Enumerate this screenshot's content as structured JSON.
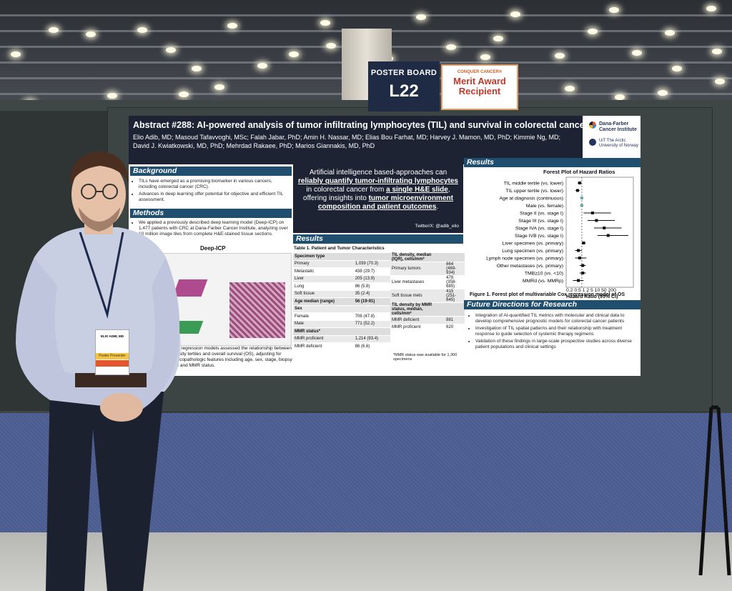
{
  "sign": {
    "board_label": "POSTER BOARD",
    "board_number": "L22",
    "award_org": "CONQUER CANCER®",
    "award_text": "Merit Award Recipient"
  },
  "poster": {
    "title": "Abstract #288: AI-powered analysis of tumor infiltrating lymphocytes (TIL) and survival in colorectal cancer",
    "authors": "Elio Adib, MD; Masoud Tafavvoghi, MSc; Falah Jabar, PhD; Amin H. Nassar, MD; Elias Bou Farhat, MD; Harvey J. Mamon, MD, PhD; Kimmie Ng, MD; David J. Kwiatkowski, MD, PhD; Mehrdad Rakaee, PhD; Marios Giannakis, MD, PhD",
    "logo1": "Dana-Farber Cancer Institute",
    "logo2": "UiT The Arctic University of Norway",
    "background_head": "Background",
    "background_bullets": [
      "TILs have emerged as a promising biomarker in various cancers, including colorectal cancer (CRC).",
      "Advances in deep learning offer potential for objective and efficient TIL assessment."
    ],
    "methods_head": "Methods",
    "methods_bullets": [
      "We applied a previously described deep learning model (Deep-ICP) on 1,477 patients with CRC at Dana-Farber Cancer Institute, analyzing over 10 million image tiles from complete H&E-stained tissue sections."
    ],
    "methods_fig_title": "Deep-ICP",
    "methods_tail": "Cox regression models assessed the relationship between density tertiles and overall survival (OS), adjusting for clinicopathologic features including age, sex, stage, biopsy site and MMR status.",
    "key_message": {
      "p1": "Artificial intelligence based-approaches can",
      "p2": "reliably quantify tumor-infiltrating lymphocytes",
      "p3": "in colorectal cancer from",
      "p4": "a single H&E slide",
      "p5": ", offering insights into",
      "p6": "tumor microenvironment composition and patient outcomes",
      "p7": ".",
      "twitter": "Twitter/X: @adib_elio"
    },
    "results_head": "Results",
    "table_title": "Table 1. Patient and Tumor Characteristics",
    "table_left": [
      {
        "label": "Specimen type",
        "value": "",
        "section": true
      },
      {
        "label": "Primary",
        "value": "1,039 (70.3)"
      },
      {
        "label": "Metastatic",
        "value": "438 (29.7)"
      },
      {
        "label": "Liver",
        "value": "205 (13.9)"
      },
      {
        "label": "Lung",
        "value": "86 (5.8)"
      },
      {
        "label": "Soft tissue",
        "value": "35 (2.4)"
      },
      {
        "label": "Age median (range)",
        "value": "56 (19-91)",
        "section": true
      },
      {
        "label": "Sex",
        "value": "",
        "section": true
      },
      {
        "label": "Female",
        "value": "706 (47.8)"
      },
      {
        "label": "Male",
        "value": "771 (52.2)"
      },
      {
        "label": "MMR status*",
        "value": "",
        "section": true
      },
      {
        "label": "MMR proficient",
        "value": "1,214 (93.4)"
      },
      {
        "label": "MMR deficient",
        "value": "86 (6.6)"
      }
    ],
    "table_right": [
      {
        "label": "TIL density, median (IQR), cells/mm²",
        "value": "",
        "section": true
      },
      {
        "label": "Primary tumors",
        "value": "664 (469-934)"
      },
      {
        "label": "Liver metastases",
        "value": "478 (358-685)"
      },
      {
        "label": "Soft tissue mets",
        "value": "415 (251-645)"
      },
      {
        "label": "TIL density by MMR status, median, cells/mm²",
        "value": "",
        "section": true
      },
      {
        "label": "MMR deficient",
        "value": "881"
      },
      {
        "label": "MMR proficient",
        "value": "620"
      }
    ],
    "table_note": "*MMR status was available for 1,300 specimens",
    "results_right_head": "Results",
    "forest_title": "Forest Plot of Hazard Ratios",
    "forest_axis_ticks": "0.2 0.5 1  2  5 10   50  200",
    "forest_xlabel": "Hazard Ratio (95% CI)",
    "forest_caption": "Figure 1. Forest plot of multivariable Cox regression model of OS",
    "future_head": "Future Directions for Research",
    "future_bullets": [
      "Integration of AI-quantified TIL metrics with molecular and clinical data to develop comprehensive prognostic models for colorectal cancer patients",
      "Investigation of TIL spatial patterns and their relationship with treatment response to guide selection of systemic therapy regimens",
      "Validation of these findings in large-scale prospective studies across diverse patient populations and clinical settings"
    ]
  },
  "forest": [
    {
      "label": "TIL middle tertile (vs. lower)",
      "hr": 0.8,
      "lo": 0.65,
      "hi": 0.98
    },
    {
      "label": "TIL upper tertile (vs. lower)",
      "hr": 0.65,
      "lo": 0.52,
      "hi": 0.8
    },
    {
      "label": "Age at diagnosis (continuous)",
      "hr": 1.0,
      "lo": 0.99,
      "hi": 1.01
    },
    {
      "label": "Male (vs. female)",
      "hr": 1.0,
      "lo": 0.85,
      "hi": 1.15
    },
    {
      "label": "Stage II (vs. stage I)",
      "hr": 3.0,
      "lo": 1.2,
      "hi": 20
    },
    {
      "label": "Stage III (vs. stage I)",
      "hr": 4.5,
      "lo": 1.8,
      "hi": 30
    },
    {
      "label": "Stage IVA (vs. stage I)",
      "hr": 10,
      "lo": 3.5,
      "hi": 60
    },
    {
      "label": "Stage IVB (vs. stage I)",
      "hr": 15,
      "lo": 5,
      "hi": 120
    },
    {
      "label": "Liver specimen (vs. primary)",
      "hr": 1.2,
      "lo": 1.0,
      "hi": 1.5
    },
    {
      "label": "Lung specimen (vs. primary)",
      "hr": 0.7,
      "lo": 0.5,
      "hi": 1.0
    },
    {
      "label": "Lymph node specimen (vs. primary)",
      "hr": 0.8,
      "lo": 0.5,
      "hi": 1.6
    },
    {
      "label": "Other metastases (vs. primary)",
      "hr": 1.1,
      "lo": 0.8,
      "hi": 1.5
    },
    {
      "label": "TMB≥10 (vs. <10)",
      "hr": 1.1,
      "lo": 0.8,
      "hi": 1.5
    },
    {
      "label": "MMRd (vs. MMRp)",
      "hr": 0.7,
      "lo": 0.4,
      "hi": 1.2
    }
  ],
  "badge": {
    "line1": "ELIO ADIB, MD",
    "strip1": "Poster Presenter"
  }
}
